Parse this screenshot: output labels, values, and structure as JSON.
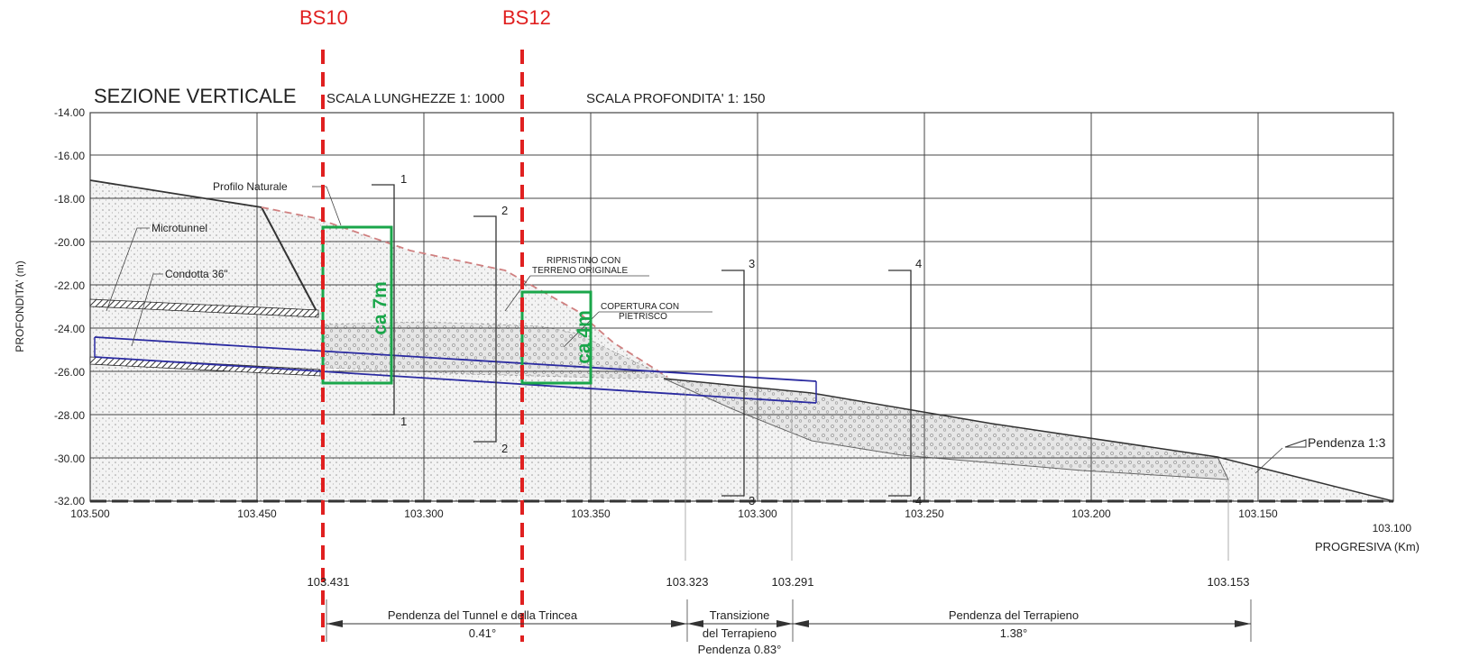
{
  "markers": {
    "bs10": "BS10",
    "bs12": "BS12"
  },
  "header": {
    "title": "SEZIONE VERTICALE",
    "scala_lunghezze": "SCALA LUNGHEZZE 1: 1000",
    "scala_profondita": "SCALA PROFONDITA' 1: 150"
  },
  "axes": {
    "ylabel": "PROFONDITA' (m)",
    "xlabel": "PROGRESIVA (Km)",
    "y_ticks": [
      "-14.00",
      "-16.00",
      "-18.00",
      "-20.00",
      "-22.00",
      "-24.00",
      "-26.00",
      "-28.00",
      "-30.00",
      "-32.00"
    ],
    "x_ticks": [
      "103.500",
      "103.450",
      "103.300",
      "103.350",
      "103.300",
      "103.250",
      "103.200",
      "103.150",
      "103.100"
    ]
  },
  "labels": {
    "profilo_naturale": "Profilo Naturale",
    "microtunnel": "Microtunnel",
    "condotta": "Condotta 36\"",
    "ripristino_1": "RIPRISTINO CON",
    "ripristino_2": "TERRENO ORIGINALE",
    "copertura_1": "COPERTURA CON",
    "copertura_2": "PIETRISCO",
    "pendenza_slope": "Pendenza 1:3"
  },
  "section_marks": [
    "1",
    "1",
    "2",
    "2",
    "3",
    "3",
    "4",
    "4"
  ],
  "boxes": {
    "box1": "ca 7m",
    "box2": "ca 4m"
  },
  "chainage": [
    "103.431",
    "103.323",
    "103.291",
    "103.153"
  ],
  "segments": {
    "seg1_line1": "Pendenza del Tunnel e della Trincea",
    "seg1_line2": "0.41°",
    "seg2_line1": "Transizione",
    "seg2_line2": "del Terrapieno",
    "seg2_line3": "Pendenza 0.83°",
    "seg3_line1": "Pendenza del Terrapieno",
    "seg3_line2": "1.38°"
  },
  "colors": {
    "marker": "#e02020",
    "box": "#1aa64a",
    "pipe": "#2a2aa0",
    "natural_profile": "#d08080"
  }
}
